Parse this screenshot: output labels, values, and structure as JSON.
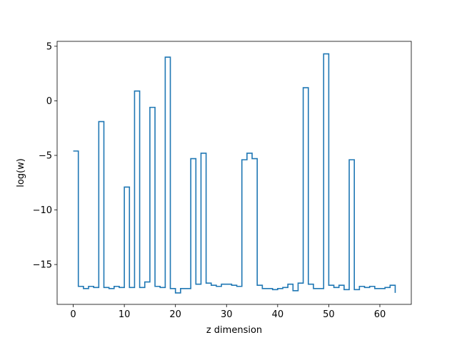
{
  "chart_data": {
    "type": "line",
    "drawstyle": "steps-post",
    "title": "",
    "xlabel": "z dimension",
    "ylabel": "log(w)",
    "xlim": [
      -3.15,
      66.15
    ],
    "ylim": [
      -18.65,
      5.45
    ],
    "xticks": [
      0,
      10,
      20,
      30,
      40,
      50,
      60
    ],
    "yticks": [
      5,
      0,
      -5,
      -10,
      -15
    ],
    "ytick_labels": [
      "5",
      "0",
      "−5",
      "−10",
      "−15"
    ],
    "grid": false,
    "legend": "none",
    "series": [
      {
        "color": "#1f77b4",
        "x": [
          0,
          1,
          2,
          3,
          4,
          5,
          6,
          7,
          8,
          9,
          10,
          11,
          12,
          13,
          14,
          15,
          16,
          17,
          18,
          19,
          20,
          21,
          22,
          23,
          24,
          25,
          26,
          27,
          28,
          29,
          30,
          31,
          32,
          33,
          34,
          35,
          36,
          37,
          38,
          39,
          40,
          41,
          42,
          43,
          44,
          45,
          46,
          47,
          48,
          49,
          50,
          51,
          52,
          53,
          54,
          55,
          56,
          57,
          58,
          59,
          60,
          61,
          62,
          63
        ],
        "values": [
          -4.6,
          -17.0,
          -17.2,
          -17.0,
          -17.1,
          -1.9,
          -17.1,
          -17.2,
          -17.0,
          -17.1,
          -7.9,
          -17.1,
          0.9,
          -17.1,
          -16.6,
          -0.6,
          -17.0,
          -17.1,
          4.0,
          -17.2,
          -17.6,
          -17.2,
          -17.2,
          -5.3,
          -16.8,
          -4.8,
          -16.7,
          -16.9,
          -17.0,
          -16.8,
          -16.8,
          -16.9,
          -17.0,
          -5.4,
          -4.8,
          -5.3,
          -16.9,
          -17.2,
          -17.2,
          -17.3,
          -17.2,
          -17.1,
          -16.8,
          -17.4,
          -16.7,
          1.2,
          -16.8,
          -17.2,
          -17.2,
          4.3,
          -16.9,
          -17.1,
          -16.9,
          -17.3,
          -5.4,
          -17.3,
          -17.0,
          -17.1,
          -17.0,
          -17.2,
          -17.2,
          -17.1,
          -16.9,
          -17.6
        ]
      }
    ]
  }
}
